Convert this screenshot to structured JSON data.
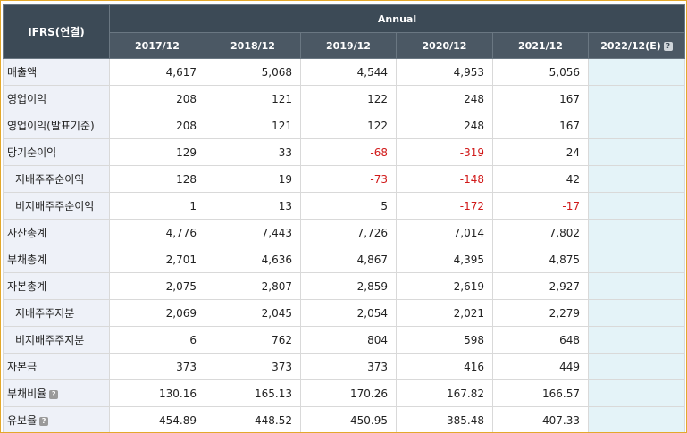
{
  "header": {
    "label_col": "IFRS(연결)",
    "group_label": "Annual",
    "years": [
      "2017/12",
      "2018/12",
      "2019/12",
      "2020/12",
      "2021/12",
      "2022/12(E)"
    ],
    "help_glyph": "?"
  },
  "rows": [
    {
      "label": "매출액",
      "values": [
        "4,617",
        "5,068",
        "4,544",
        "4,953",
        "5,056",
        ""
      ]
    },
    {
      "label": "영업이익",
      "values": [
        "208",
        "121",
        "122",
        "248",
        "167",
        ""
      ]
    },
    {
      "label": "영업이익(발표기준)",
      "values": [
        "208",
        "121",
        "122",
        "248",
        "167",
        ""
      ]
    },
    {
      "label": "당기순이익",
      "values": [
        "129",
        "33",
        "-68",
        "-319",
        "24",
        ""
      ]
    },
    {
      "label": "지배주주순이익",
      "values": [
        "128",
        "19",
        "-73",
        "-148",
        "42",
        ""
      ]
    },
    {
      "label": "비지배주주순이익",
      "values": [
        "1",
        "13",
        "5",
        "-172",
        "-17",
        ""
      ]
    },
    {
      "label": "자산총계",
      "values": [
        "4,776",
        "7,443",
        "7,726",
        "7,014",
        "7,802",
        ""
      ]
    },
    {
      "label": "부채총계",
      "values": [
        "2,701",
        "4,636",
        "4,867",
        "4,395",
        "4,875",
        ""
      ]
    },
    {
      "label": "자본총계",
      "values": [
        "2,075",
        "2,807",
        "2,859",
        "2,619",
        "2,927",
        ""
      ]
    },
    {
      "label": "지배주주지분",
      "values": [
        "2,069",
        "2,045",
        "2,054",
        "2,021",
        "2,279",
        ""
      ]
    },
    {
      "label": "비지배주주지분",
      "values": [
        "6",
        "762",
        "804",
        "598",
        "648",
        ""
      ]
    },
    {
      "label": "자본금",
      "values": [
        "373",
        "373",
        "373",
        "416",
        "449",
        ""
      ]
    },
    {
      "label": "부채비율",
      "values": [
        "130.16",
        "165.13",
        "170.26",
        "167.82",
        "166.57",
        ""
      ]
    },
    {
      "label": "유보율",
      "values": [
        "454.89",
        "448.52",
        "450.95",
        "385.48",
        "407.33",
        ""
      ]
    }
  ],
  "colors": {
    "header_bg": "#3c4a56",
    "label_bg": "#eef1f8",
    "estimate_bg": "#e4f3f8",
    "negative": "#d11a1a",
    "frame_border": "#e3a82c"
  }
}
